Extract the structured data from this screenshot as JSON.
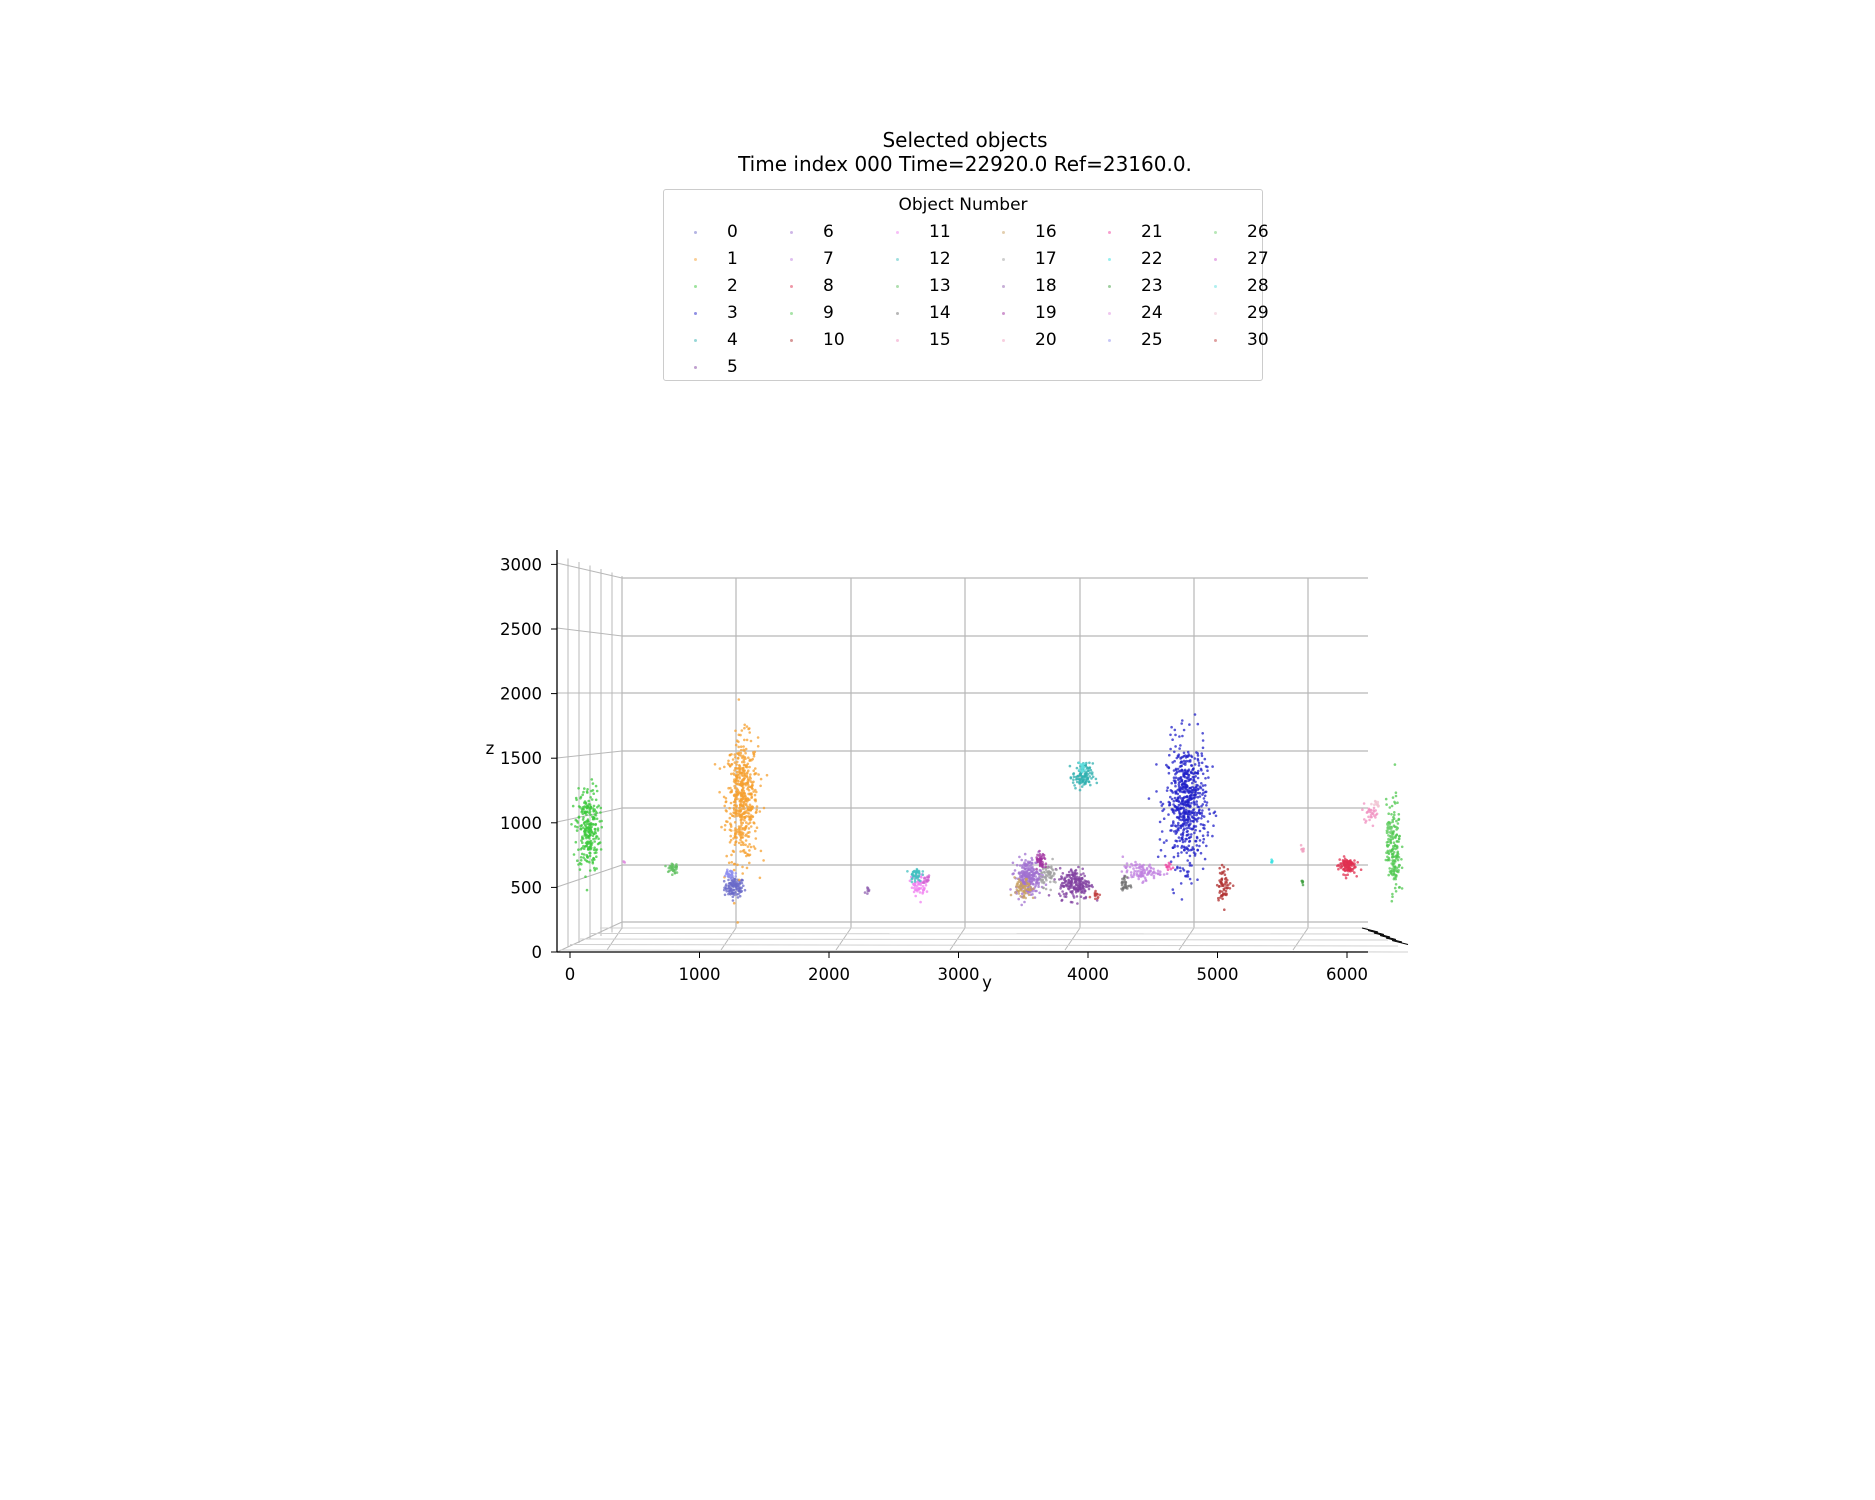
{
  "chart_data": {
    "type": "scatter",
    "title": "Selected objects",
    "subtitle": "Time index 000 Time=22920.0 Ref=23160.0.",
    "ylabel": "y",
    "zlabel": "z",
    "legend": {
      "title": "Object Number",
      "placement": "top-center",
      "entries": [
        "0",
        "1",
        "2",
        "3",
        "4",
        "5",
        "6",
        "7",
        "8",
        "9",
        "10",
        "11",
        "12",
        "13",
        "14",
        "15",
        "16",
        "17",
        "18",
        "19",
        "20",
        "21",
        "22",
        "23",
        "24",
        "25",
        "26",
        "27",
        "28",
        "29",
        "30"
      ]
    },
    "yticks": [
      "0",
      "1000",
      "2000",
      "3000",
      "4000",
      "5000",
      "6000"
    ],
    "zticks": [
      "0",
      "500",
      "1000",
      "1500",
      "2000",
      "2500",
      "3000"
    ],
    "ylim": [
      -100,
      6200
    ],
    "zlim": [
      0,
      3000
    ],
    "grid": true,
    "series": [
      {
        "name": "0",
        "color": "#6a6ac8",
        "y": 1270,
        "z": 500,
        "sy": 70,
        "sz": 70,
        "n": 110
      },
      {
        "name": "1",
        "color": "#f5a030",
        "y": 1330,
        "z": 1180,
        "sy": 110,
        "sz": 430,
        "n": 520
      },
      {
        "name": "2",
        "color": "#3cc83c",
        "y": 140,
        "z": 950,
        "sy": 80,
        "sz": 300,
        "n": 260
      },
      {
        "name": "3",
        "color": "#2020c8",
        "y": 4760,
        "z": 1150,
        "sy": 140,
        "sz": 430,
        "n": 620
      },
      {
        "name": "4",
        "color": "#30b0b0",
        "y": 3960,
        "z": 1360,
        "sy": 70,
        "sz": 90,
        "n": 110
      },
      {
        "name": "5",
        "color": "#8040a0",
        "y": 3900,
        "z": 530,
        "sy": 110,
        "sz": 110,
        "n": 200
      },
      {
        "name": "6",
        "color": "#a070d0",
        "y": 3540,
        "z": 580,
        "sy": 90,
        "sz": 130,
        "n": 240
      },
      {
        "name": "7",
        "color": "#c080e0",
        "y": 4410,
        "z": 620,
        "sy": 130,
        "sz": 60,
        "n": 100
      },
      {
        "name": "8",
        "color": "#e03050",
        "y": 6000,
        "z": 670,
        "sy": 60,
        "sz": 60,
        "n": 110
      },
      {
        "name": "9",
        "color": "#50c850",
        "y": 6360,
        "z": 800,
        "sy": 50,
        "sz": 330,
        "n": 170
      },
      {
        "name": "10",
        "color": "#b03030",
        "y": 5050,
        "z": 530,
        "sy": 50,
        "sz": 120,
        "n": 60
      },
      {
        "name": "11",
        "color": "#f080f0",
        "y": 2690,
        "z": 520,
        "sy": 50,
        "sz": 80,
        "n": 60
      },
      {
        "name": "12",
        "color": "#40c0c0",
        "y": 2670,
        "z": 600,
        "sy": 40,
        "sz": 50,
        "n": 40
      },
      {
        "name": "13",
        "color": "#60c060",
        "y": 790,
        "z": 650,
        "sy": 40,
        "sz": 50,
        "n": 35
      },
      {
        "name": "14",
        "color": "#707070",
        "y": 4290,
        "z": 520,
        "sy": 30,
        "sz": 60,
        "n": 30
      },
      {
        "name": "15",
        "color": "#f090c0",
        "y": 6180,
        "z": 1080,
        "sy": 60,
        "sz": 60,
        "n": 30
      },
      {
        "name": "16",
        "color": "#c8a060",
        "y": 3500,
        "z": 480,
        "sy": 60,
        "sz": 80,
        "n": 60
      },
      {
        "name": "17",
        "color": "#a0a0a0",
        "y": 3700,
        "z": 600,
        "sy": 60,
        "sz": 80,
        "n": 60
      },
      {
        "name": "18",
        "color": "#9060b0",
        "y": 2300,
        "z": 470,
        "sy": 20,
        "sz": 20,
        "n": 8
      },
      {
        "name": "19",
        "color": "#a030a0",
        "y": 3640,
        "z": 700,
        "sy": 40,
        "sz": 60,
        "n": 40
      },
      {
        "name": "20",
        "color": "#f0a0c0",
        "y": 5650,
        "z": 790,
        "sy": 20,
        "sz": 20,
        "n": 8
      },
      {
        "name": "21",
        "color": "#f040a0",
        "y": 4630,
        "z": 660,
        "sy": 30,
        "sz": 30,
        "n": 10
      },
      {
        "name": "22",
        "color": "#30e0e0",
        "y": 5420,
        "z": 700,
        "sy": 10,
        "sz": 10,
        "n": 4
      },
      {
        "name": "23",
        "color": "#40a040",
        "y": 5650,
        "z": 540,
        "sy": 20,
        "sz": 20,
        "n": 6
      },
      {
        "name": "24",
        "color": "#e090e0",
        "y": 420,
        "z": 690,
        "sy": 10,
        "sz": 10,
        "n": 4
      },
      {
        "name": "25",
        "color": "#9090f0",
        "y": 1230,
        "z": 600,
        "sy": 40,
        "sz": 40,
        "n": 30
      },
      {
        "name": "26",
        "color": "#70d070",
        "y": 6330,
        "z": 950,
        "sy": 20,
        "sz": 60,
        "n": 20
      },
      {
        "name": "27",
        "color": "#d060d0",
        "y": 2750,
        "z": 560,
        "sy": 30,
        "sz": 30,
        "n": 15
      },
      {
        "name": "28",
        "color": "#60e0e0",
        "y": 3950,
        "z": 1430,
        "sy": 30,
        "sz": 30,
        "n": 15
      },
      {
        "name": "29",
        "color": "#f0c0d0",
        "y": 6230,
        "z": 1150,
        "sy": 30,
        "sz": 30,
        "n": 10
      },
      {
        "name": "30",
        "color": "#c04040",
        "y": 4060,
        "z": 450,
        "sy": 30,
        "sz": 40,
        "n": 15
      }
    ]
  }
}
